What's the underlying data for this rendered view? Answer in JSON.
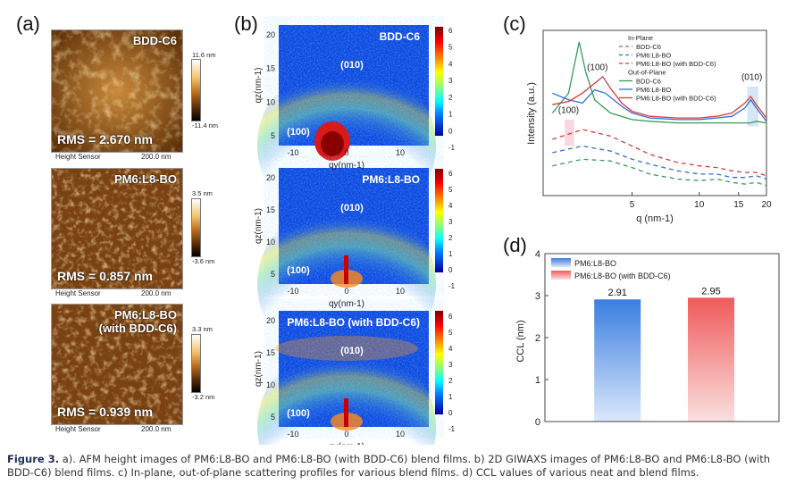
{
  "panel_labels": {
    "a": "(a)",
    "b": "(b)",
    "c": "(c)",
    "d": "(d)"
  },
  "afm": [
    {
      "title": "BDD-C6",
      "rms": "RMS = 2.670 nm",
      "cbar_max": "11.6 nm",
      "cbar_min": "-11.4 nm",
      "sensor": "Height Sensor",
      "scale": "200.0 nm"
    },
    {
      "title": "PM6:L8-BO",
      "rms": "RMS = 0.857 nm",
      "cbar_max": "3.5 nm",
      "cbar_min": "-3.6 nm",
      "sensor": "Height Sensor",
      "scale": "200.0 nm"
    },
    {
      "title": "PM6:L8-BO\n(with BDD-C6)",
      "rms": "RMS = 0.939 nm",
      "cbar_max": "3.3 nm",
      "cbar_min": "-3.2 nm",
      "sensor": "Height Sensor",
      "scale": "200.0 nm"
    }
  ],
  "giwaxs": [
    {
      "title": "BDD-C6",
      "peak_010": "(010)",
      "peak_100": "(100)"
    },
    {
      "title": "PM6:L8-BO",
      "peak_010": "(010)",
      "peak_100": "(100)"
    },
    {
      "title": "PM6:L8-BO (with BDD-C6)",
      "peak_010": "(010)",
      "peak_100": "(100)"
    }
  ],
  "giwaxs_axes": {
    "qz_label": "qz(nm-1)",
    "qy_label": "qy(nm-1)",
    "qz_ticks": [
      "20",
      "15",
      "10",
      "5"
    ],
    "qy_ticks": [
      "-10",
      "0",
      "10"
    ],
    "cbar_ticks": [
      "6",
      "5",
      "4",
      "3",
      "2",
      "1",
      "0",
      "-1"
    ]
  },
  "chart_data": [
    {
      "type": "line",
      "panel": "(c)",
      "xlabel": "q (nm-1)",
      "ylabel": "Intensity (a.u.)",
      "x_scale": "log",
      "xlim": [
        2,
        20
      ],
      "x_ticks": [
        "5",
        "10",
        "15",
        "20"
      ],
      "legend_headers": [
        "In-Plane",
        "Out-of-Plane"
      ],
      "annotations": [
        "(100)",
        "(100)",
        "(010)"
      ],
      "series": [
        {
          "name": "BDD-C6",
          "group": "In-Plane",
          "style": "dashed",
          "color": "#3a9a5a",
          "x": [
            2.2,
            3,
            4,
            5,
            6,
            8,
            10,
            12,
            14,
            16,
            18,
            20
          ],
          "y": [
            0.18,
            0.22,
            0.21,
            0.17,
            0.13,
            0.1,
            0.09,
            0.1,
            0.08,
            0.07,
            0.08,
            0.06
          ]
        },
        {
          "name": "PM6:L8-BO",
          "group": "In-Plane",
          "style": "dashed",
          "color": "#2f6fd0",
          "x": [
            2.2,
            3,
            4,
            5,
            6,
            8,
            10,
            12,
            14,
            16,
            18,
            20
          ],
          "y": [
            0.26,
            0.3,
            0.27,
            0.22,
            0.19,
            0.15,
            0.13,
            0.13,
            0.11,
            0.11,
            0.12,
            0.1
          ]
        },
        {
          "name": "PM6:L8-BO (with BDD-C6)",
          "group": "In-Plane",
          "style": "dashed",
          "color": "#d83a3a",
          "x": [
            2.2,
            3,
            4,
            5,
            6,
            8,
            10,
            12,
            14,
            16,
            18,
            20
          ],
          "y": [
            0.34,
            0.4,
            0.36,
            0.3,
            0.25,
            0.2,
            0.18,
            0.17,
            0.15,
            0.14,
            0.14,
            0.12
          ]
        },
        {
          "name": "BDD-C6",
          "group": "Out-of-Plane",
          "style": "solid",
          "color": "#3a9a5a",
          "x": [
            2.2,
            2.6,
            2.9,
            3.1,
            3.4,
            4,
            5,
            6,
            8,
            10,
            12,
            14,
            16,
            17,
            18,
            20
          ],
          "y": [
            0.5,
            0.62,
            0.93,
            0.75,
            0.58,
            0.5,
            0.46,
            0.45,
            0.44,
            0.44,
            0.44,
            0.44,
            0.44,
            0.44,
            0.45,
            0.44
          ]
        },
        {
          "name": "PM6:L8-BO",
          "group": "Out-of-Plane",
          "style": "solid",
          "color": "#2f6fd0",
          "x": [
            2.2,
            2.6,
            3,
            3.4,
            3.8,
            4.5,
            5,
            6,
            8,
            10,
            12,
            14,
            16,
            17,
            18,
            20
          ],
          "y": [
            0.62,
            0.58,
            0.56,
            0.64,
            0.62,
            0.54,
            0.5,
            0.47,
            0.46,
            0.46,
            0.47,
            0.48,
            0.53,
            0.58,
            0.53,
            0.45
          ]
        },
        {
          "name": "PM6:L8-BO (with BDD-C6)",
          "group": "Out-of-Plane",
          "style": "solid",
          "color": "#d83a3a",
          "x": [
            2.2,
            2.6,
            3,
            3.4,
            3.7,
            4,
            4.5,
            5,
            6,
            8,
            10,
            12,
            14,
            16,
            17,
            18,
            20
          ],
          "y": [
            0.55,
            0.57,
            0.62,
            0.68,
            0.72,
            0.65,
            0.56,
            0.51,
            0.48,
            0.47,
            0.47,
            0.48,
            0.5,
            0.56,
            0.6,
            0.55,
            0.47
          ]
        }
      ]
    },
    {
      "type": "bar",
      "panel": "(d)",
      "categories": [
        "PM6:L8-BO",
        "PM6:L8-BO (with BDD-C6)"
      ],
      "values": [
        2.91,
        2.95
      ],
      "value_labels": [
        "2.91",
        "2.95"
      ],
      "ylabel": "CCL (nm)",
      "ylim": [
        0,
        4
      ],
      "y_ticks": [
        "0",
        "1",
        "2",
        "3",
        "4"
      ],
      "colors": [
        "#3a7ee0",
        "#ef5a5a"
      ],
      "legend": "top-left"
    }
  ],
  "caption": {
    "label": "Figure 3.",
    "text": " a). AFM height images of PM6:L8-BO and PM6:L8-BO (with BDD-C6) blend films. b) 2D GIWAXS images of PM6:L8-BO and PM6:L8-BO (with BDD-C6) blend films. c) In-plane, out-of-plane scattering profiles for various blend films. d) CCL values of various neat and blend films."
  }
}
